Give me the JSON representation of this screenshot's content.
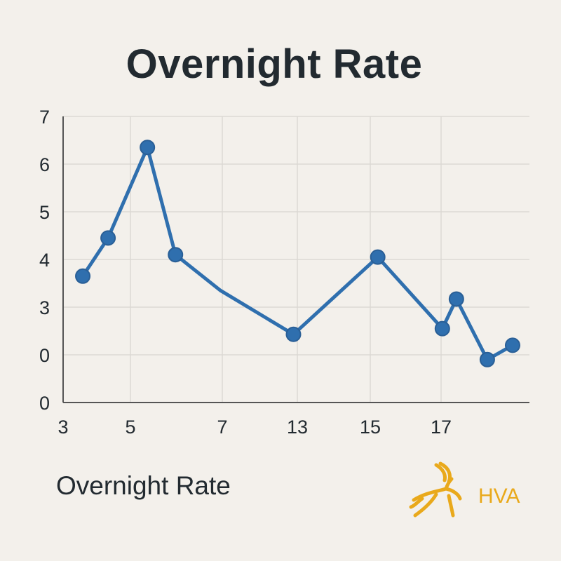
{
  "title": "Overnight Rate",
  "footer_label": "Overnight Rate",
  "logo": {
    "text": "HVA",
    "icon": "gazelle-icon",
    "color": "#e9a91b"
  },
  "colors": {
    "line": "#2f6fae",
    "grid": "#dcd9d4",
    "axis": "#555555",
    "background": "#f3f0eb"
  },
  "chart_data": {
    "type": "line",
    "title": "Overnight Rate",
    "xlabel": "",
    "ylabel": "",
    "grid": true,
    "x_tick_labels": [
      "3",
      "5",
      "7",
      "13",
      "15",
      "17"
    ],
    "y_tick_labels": [
      "0",
      "0",
      "3",
      "4",
      "5",
      "6",
      "7"
    ],
    "series": [
      {
        "points": [
          {
            "x": 3.7,
            "y": 3.65
          },
          {
            "x": 4.6,
            "y": 4.45
          },
          {
            "x": 6.0,
            "y": 6.35
          },
          {
            "x": 7.0,
            "y": 4.1
          },
          {
            "x": 8.6,
            "y": 3.35
          },
          {
            "x": 11.2,
            "y": 2.43
          },
          {
            "x": 14.2,
            "y": 4.05
          },
          {
            "x": 16.5,
            "y": 2.55
          },
          {
            "x": 17.0,
            "y": 3.17
          },
          {
            "x": 18.1,
            "y": 1.9
          },
          {
            "x": 19.0,
            "y": 2.2
          }
        ]
      }
    ]
  }
}
